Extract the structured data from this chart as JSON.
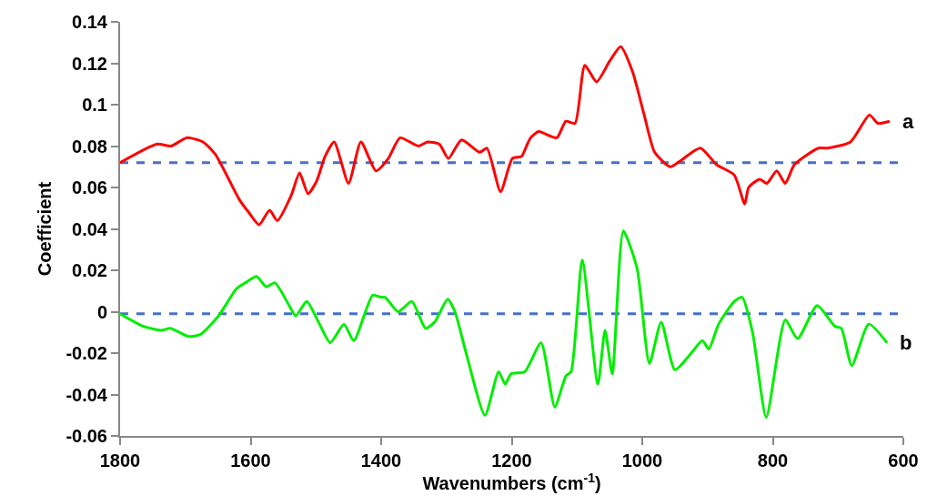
{
  "chart_data": {
    "type": "line",
    "xlabel": "Wavenumbers (cm$^{-1}$)",
    "ylabel": "Coefficient",
    "xlim": [
      1800,
      600
    ],
    "xticks": [
      1800,
      1600,
      1400,
      1200,
      1000,
      800,
      600
    ],
    "ylim": [
      -0.06,
      0.14
    ],
    "yticks": [
      -0.06,
      -0.04,
      -0.02,
      0,
      0.02,
      0.04,
      0.06,
      0.08,
      0.1,
      0.12,
      0.14
    ],
    "grid": false,
    "legend": false,
    "marker": "none",
    "line_style": "solid",
    "series": [
      {
        "name": "a",
        "color": "#ff0000",
        "x": [
          1800,
          1743,
          1722,
          1698,
          1673,
          1654,
          1617,
          1603,
          1587,
          1571,
          1559,
          1538,
          1525,
          1512,
          1499,
          1486,
          1472,
          1450,
          1431,
          1408,
          1389,
          1371,
          1343,
          1329,
          1311,
          1297,
          1277,
          1249,
          1238,
          1217,
          1199,
          1185,
          1176,
          1171,
          1159,
          1131,
          1117,
          1103,
          1088,
          1070,
          1050,
          1033,
          1015,
          997,
          981,
          957,
          941,
          911,
          886,
          859,
          843,
          837,
          820,
          809,
          794,
          781,
          767,
          730,
          716,
          681,
          652,
          639,
          621
        ],
        "values": [
          0.072,
          0.081,
          0.08,
          0.084,
          0.082,
          0.076,
          0.054,
          0.048,
          0.042,
          0.049,
          0.044,
          0.056,
          0.067,
          0.057,
          0.063,
          0.075,
          0.082,
          0.062,
          0.082,
          0.068,
          0.074,
          0.084,
          0.08,
          0.082,
          0.081,
          0.074,
          0.083,
          0.077,
          0.079,
          0.058,
          0.074,
          0.075,
          0.081,
          0.084,
          0.087,
          0.084,
          0.092,
          0.091,
          0.119,
          0.111,
          0.121,
          0.128,
          0.116,
          0.095,
          0.077,
          0.07,
          0.073,
          0.079,
          0.071,
          0.066,
          0.052,
          0.06,
          0.064,
          0.062,
          0.068,
          0.062,
          0.071,
          0.079,
          0.079,
          0.082,
          0.095,
          0.091,
          0.092
        ]
      },
      {
        "name": "b",
        "color": "#00ee00",
        "x": [
          1800,
          1765,
          1737,
          1723,
          1695,
          1677,
          1649,
          1622,
          1608,
          1591,
          1576,
          1563,
          1541,
          1531,
          1514,
          1496,
          1478,
          1457,
          1442,
          1413,
          1401,
          1394,
          1374,
          1353,
          1332,
          1318,
          1298,
          1287,
          1269,
          1241,
          1220,
          1210,
          1201,
          1180,
          1155,
          1134,
          1117,
          1109,
          1092,
          1068,
          1057,
          1046,
          1029,
          1008,
          989,
          971,
          950,
          925,
          908,
          898,
          883,
          859,
          847,
          831,
          810,
          781,
          762,
          732,
          705,
          695,
          679,
          653,
          625
        ],
        "values": [
          -0.001,
          -0.007,
          -0.009,
          -0.008,
          -0.012,
          -0.011,
          -0.002,
          0.011,
          0.014,
          0.017,
          0.012,
          0.014,
          0.003,
          -0.002,
          0.005,
          -0.005,
          -0.015,
          -0.006,
          -0.014,
          0.008,
          0.007,
          0.007,
          0,
          0.005,
          -0.008,
          -0.005,
          0.006,
          0,
          -0.021,
          -0.05,
          -0.029,
          -0.035,
          -0.03,
          -0.029,
          -0.015,
          -0.046,
          -0.031,
          -0.029,
          0.025,
          -0.035,
          -0.009,
          -0.03,
          0.039,
          0.021,
          -0.025,
          -0.005,
          -0.028,
          -0.02,
          -0.014,
          -0.018,
          -0.006,
          0.005,
          0.007,
          -0.01,
          -0.051,
          -0.004,
          -0.013,
          0.003,
          -0.007,
          -0.008,
          -0.026,
          -0.006,
          -0.015
        ]
      }
    ],
    "ref_lines": [
      {
        "axis": "y",
        "value": 0.072,
        "color": "#4472c4",
        "line_style": "dashed"
      },
      {
        "axis": "y",
        "value": -0.001,
        "color": "#4472c4",
        "line_style": "dashed"
      }
    ]
  }
}
